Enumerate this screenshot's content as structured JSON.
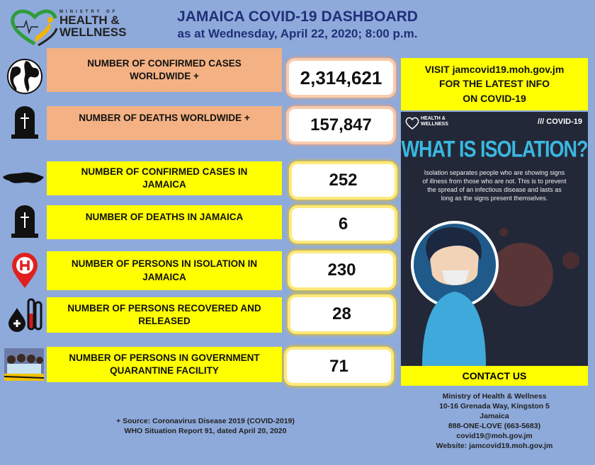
{
  "header": {
    "logo_text": "MINISTRY OF HEALTH & WELLNESS",
    "title": "JAMAICA COVID-19 DASHBOARD",
    "subtitle": "as at Wednesday, April 22, 2020; 8:00 p.m."
  },
  "stats": [
    {
      "label": "NUMBER OF CONFIRMED CASES WORLDWIDE +",
      "value": "2,314,621",
      "icon": "globe-icon"
    },
    {
      "label": "NUMBER OF DEATHS WORLDWIDE +",
      "value": "157,847",
      "icon": "tombstone-icon"
    },
    {
      "label": "NUMBER OF CONFIRMED CASES IN JAMAICA",
      "value": "252",
      "icon": "jamaica-map-icon"
    },
    {
      "label": "NUMBER OF DEATHS IN JAMAICA",
      "value": "6",
      "icon": "tombstone-icon"
    },
    {
      "label": "NUMBER OF PERSONS IN ISOLATION IN JAMAICA",
      "value": "230",
      "icon": "hospital-pin-icon"
    },
    {
      "label": "NUMBER OF PERSONS RECOVERED AND RELEASED",
      "value": "28",
      "icon": "blood-test-icon"
    },
    {
      "label": "NUMBER OF PERSONS IN GOVERNMENT QUARANTINE FACILITY",
      "value": "71",
      "icon": "quarantine-photo-icon"
    }
  ],
  "visit": {
    "line1": "VISIT  jamcovid19.moh.gov.jm",
    "line2": "FOR THE LATEST INFO",
    "line3": "ON COVID-19"
  },
  "poster": {
    "logo": "HEALTH & WELLNESS",
    "tag": "/// COVID-19",
    "heading": "WHAT IS ISOLATION?",
    "body": "Isolation separates people who are showing signs of illness from those who are not. This is to prevent the spread of an infectious disease and lasts as long as the signs present themselves."
  },
  "contact": {
    "heading": "CONTACT US",
    "lines": [
      "Ministry of Health & Wellness",
      "10-16 Grenada Way, Kingston 5",
      "Jamaica",
      "888-ONE-LOVE (663-5683)",
      "covid19@moh.gov.jm",
      "Website: jamcovid19.moh.gov.jm"
    ]
  },
  "source": {
    "line1": "+ Source: Coronavirus Disease 2019 (COVID-2019)",
    "line2": "WHO Situation Report 91, dated April 20, 2020"
  }
}
